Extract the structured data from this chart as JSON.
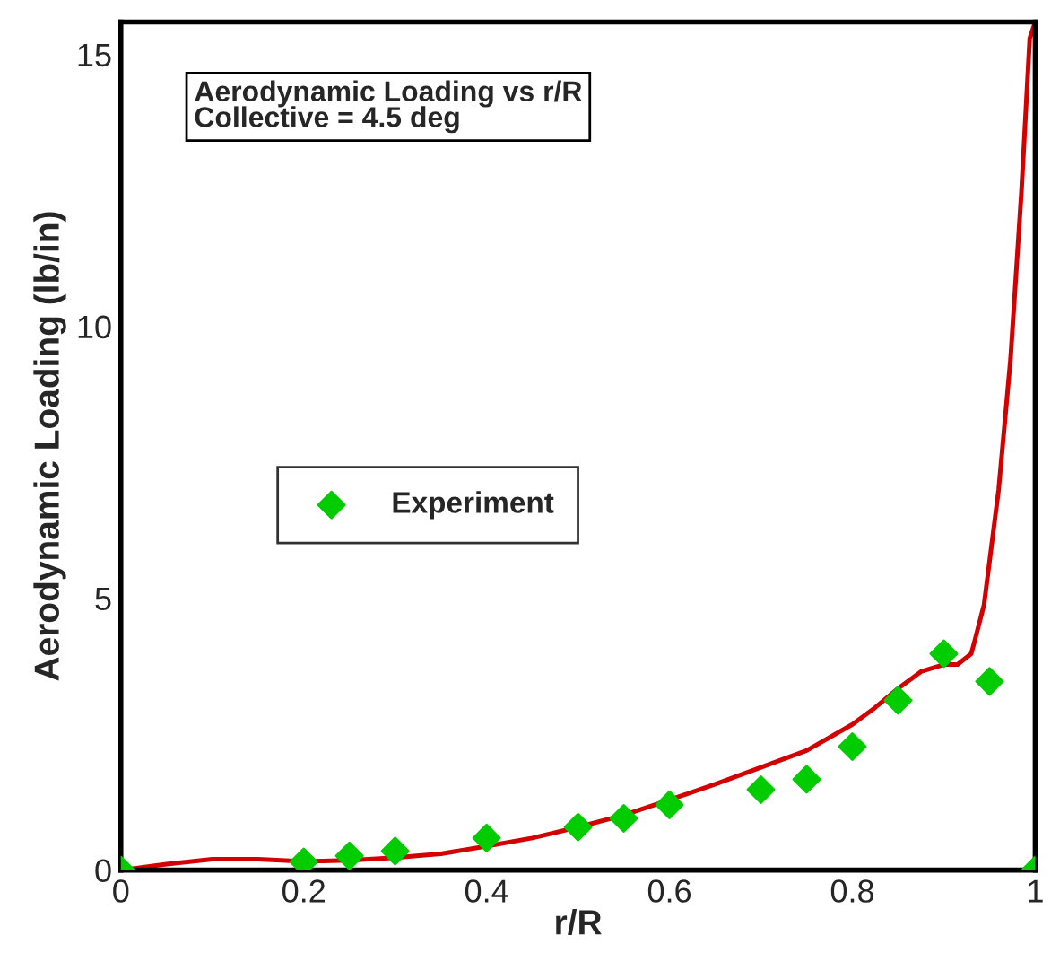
{
  "chart_data": {
    "type": "line",
    "title": "Aerodynamic Loading vs r/R\nCollective = 4.5 deg",
    "xlabel": "r/R",
    "ylabel": "Aerodynamic Loading (lb/in)",
    "xlim": [
      0,
      1
    ],
    "xticks": [
      0,
      0.2,
      0.4,
      0.6,
      0.8,
      {
        "value": 1,
        "label": "1"
      }
    ],
    "ylim": [
      0,
      15.6
    ],
    "yticks": [
      0,
      5,
      10,
      15
    ],
    "grid": false,
    "legend": "left",
    "series": [
      {
        "color": "#d40000",
        "line_style": "solid",
        "marker": "none",
        "x": [
          0,
          0.05,
          0.1,
          0.15,
          0.2,
          0.25,
          0.3,
          0.35,
          0.4,
          0.45,
          0.5,
          0.55,
          0.6,
          0.65,
          0.7,
          0.75,
          0.8,
          0.825,
          0.85,
          0.875,
          0.9,
          0.915,
          0.93,
          0.934,
          0.944,
          0.96,
          0.973,
          0.985,
          0.994,
          1.0
        ],
        "values": [
          0,
          0.11,
          0.2,
          0.2,
          0.16,
          0.18,
          0.23,
          0.3,
          0.44,
          0.59,
          0.79,
          1.01,
          1.29,
          1.58,
          1.89,
          2.2,
          2.68,
          2.99,
          3.34,
          3.65,
          3.78,
          3.78,
          3.98,
          4.23,
          4.88,
          7.0,
          9.4,
          12.5,
          15.3,
          15.6
        ]
      },
      {
        "type": "scatter",
        "name": "Experiment",
        "color": "#00cc00",
        "marker": "diamond",
        "x": [
          0,
          0.2,
          0.25,
          0.3,
          0.4,
          0.5,
          0.55,
          0.6,
          0.7,
          0.75,
          0.8,
          0.85,
          0.9,
          0.95,
          1.0
        ],
        "values": [
          0,
          0.15,
          0.26,
          0.35,
          0.59,
          0.79,
          0.95,
          1.2,
          1.48,
          1.67,
          2.27,
          3.12,
          3.98,
          3.47,
          0
        ]
      }
    ]
  }
}
